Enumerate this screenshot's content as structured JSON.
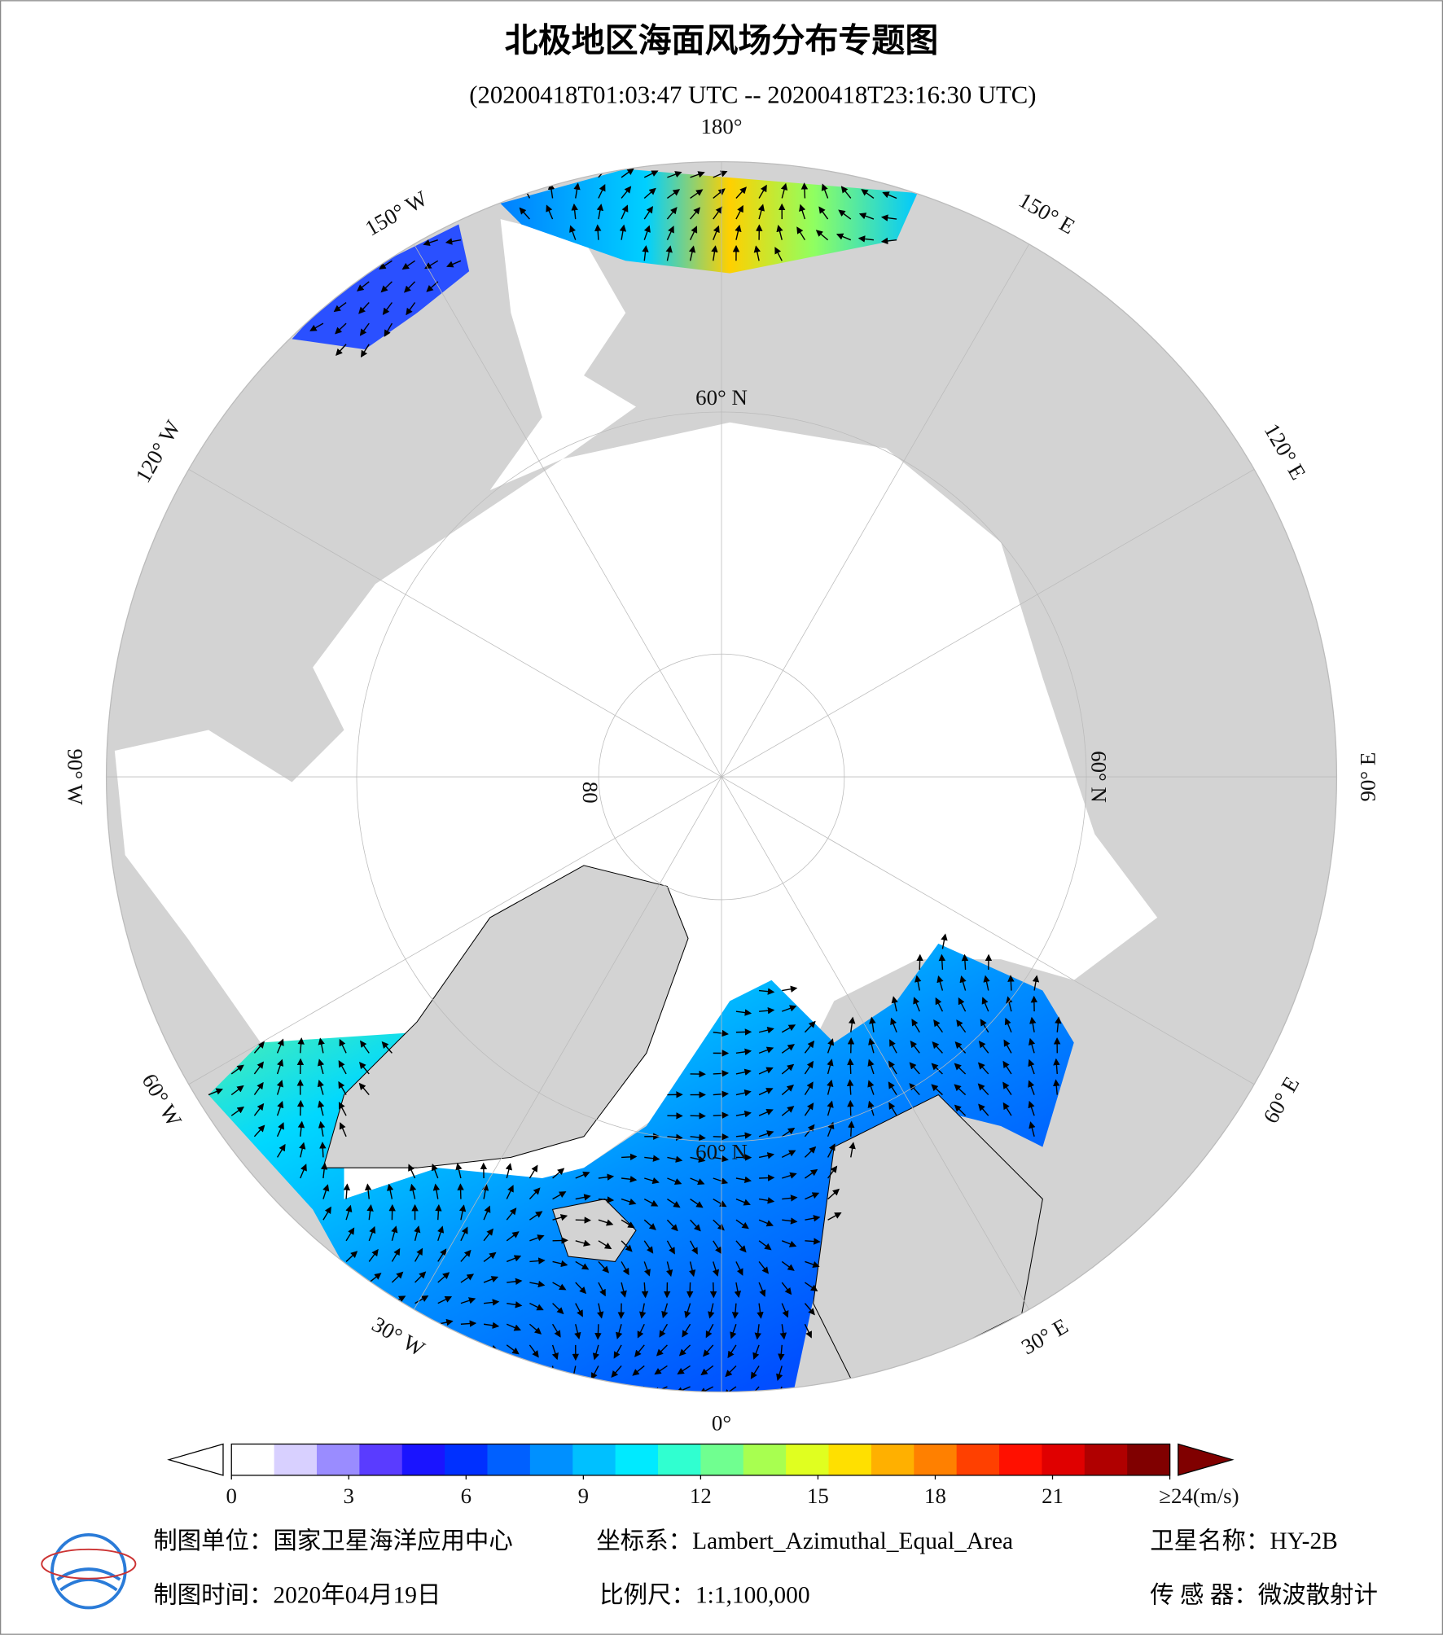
{
  "header": {
    "title": "北极地区海面风场分布专题图",
    "subtitle": "(20200418T01:03:47 UTC -- 20200418T23:16:30 UTC)"
  },
  "map": {
    "meridians": [
      {
        "value": 180,
        "label": "180°"
      },
      {
        "value": 150,
        "label": "150° E"
      },
      {
        "value": 120,
        "label": "120° E"
      },
      {
        "value": 90,
        "label": "90° E"
      },
      {
        "value": 60,
        "label": "60° E"
      },
      {
        "value": 30,
        "label": "30° E"
      },
      {
        "value": 0,
        "label": "0°"
      },
      {
        "value": -30,
        "label": "30° W"
      },
      {
        "value": -60,
        "label": "60° W"
      },
      {
        "value": -90,
        "label": "90° W"
      },
      {
        "value": -120,
        "label": "120° W"
      },
      {
        "value": -150,
        "label": "150° W"
      }
    ],
    "parallels": [
      {
        "value": 60,
        "label": "60° N"
      },
      {
        "value": 80,
        "label": "80"
      }
    ]
  },
  "colorbar": {
    "range": [
      0,
      24
    ],
    "ticks": [
      0,
      3,
      6,
      9,
      12,
      15,
      18,
      21,
      {
        "value": 24,
        "label": "≥24(m/s)"
      }
    ],
    "colors": [
      "#ffffff",
      "#d8d0ff",
      "#9a8cff",
      "#5a3cff",
      "#1a14ff",
      "#0030ff",
      "#0060ff",
      "#0090ff",
      "#00c0ff",
      "#00eaff",
      "#30ffd0",
      "#70ff90",
      "#a8ff50",
      "#e0ff20",
      "#ffe000",
      "#ffb000",
      "#ff8000",
      "#ff4000",
      "#ff1000",
      "#e00000",
      "#b00000",
      "#800000"
    ]
  },
  "footer": {
    "unit": "制图单位：国家卫星海洋应用中心",
    "projection": "坐标系：Lambert_Azimuthal_Equal_Area",
    "satellite": "卫星名称：HY-2B",
    "date": "制图时间：2020年04月19日",
    "scale": "比例尺：1:1,100,000",
    "sensor": "传 感 器：微波散射计"
  }
}
